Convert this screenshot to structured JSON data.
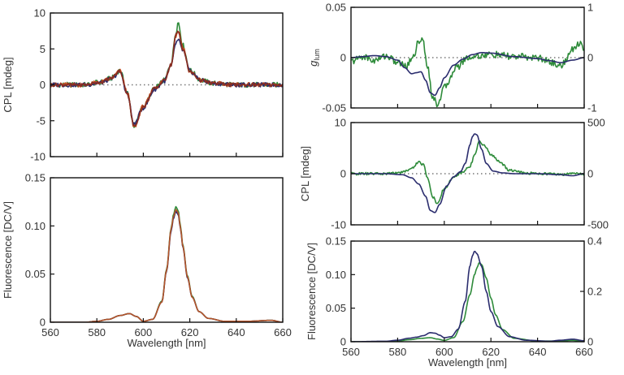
{
  "chart_data": [
    {
      "id": "left_cpl",
      "type": "line",
      "xlabel": "",
      "ylabel": "CPL [mdeg]",
      "xlim": [
        560,
        660
      ],
      "ylim": [
        -10,
        10
      ],
      "xticks": [
        560,
        580,
        600,
        620,
        640,
        660
      ],
      "xticklabels": [],
      "yticks": [
        -10,
        -5,
        0,
        5,
        10
      ],
      "yticklabels": [
        "-10",
        "-5",
        "0",
        "5",
        "10"
      ],
      "zero_line": true,
      "series": [
        {
          "name": "trace-1",
          "color": "#2e8b3a",
          "noise": 0.35,
          "x": [
            560,
            575,
            582,
            586,
            590,
            593,
            596,
            600,
            605,
            609,
            612,
            614,
            615,
            617,
            620,
            625,
            630,
            640,
            660
          ],
          "y": [
            0,
            0,
            0.4,
            0.9,
            2.0,
            -1.0,
            -5.7,
            -3.0,
            -0.5,
            0.6,
            3.0,
            7.3,
            8.7,
            5.5,
            2.0,
            0.6,
            0.2,
            0,
            0
          ]
        },
        {
          "name": "trace-2",
          "color": "#c04a1c",
          "noise": 0.3,
          "x": [
            560,
            575,
            582,
            586,
            590,
            593,
            596,
            600,
            605,
            609,
            612,
            614,
            615,
            617,
            620,
            625,
            630,
            640,
            660
          ],
          "y": [
            0,
            0,
            0.4,
            0.9,
            1.9,
            -1.0,
            -5.9,
            -3.0,
            -0.5,
            0.6,
            3.0,
            6.8,
            7.6,
            5.3,
            1.8,
            0.6,
            0.2,
            0,
            0
          ]
        },
        {
          "name": "trace-3",
          "color": "#2b2d6e",
          "noise": 0.3,
          "x": [
            560,
            575,
            582,
            586,
            590,
            593,
            596,
            600,
            605,
            609,
            612,
            614,
            615,
            617,
            620,
            625,
            630,
            640,
            660
          ],
          "y": [
            0,
            0,
            0.3,
            0.8,
            1.8,
            -1.2,
            -5.5,
            -3.2,
            -0.6,
            0.5,
            2.6,
            5.8,
            6.2,
            4.8,
            1.9,
            0.6,
            0.2,
            0,
            0
          ]
        },
        {
          "name": "trace-4",
          "color": "#8a2e22",
          "noise": 0.25,
          "x": [
            560,
            575,
            582,
            586,
            590,
            593,
            596,
            600,
            605,
            609,
            612,
            614,
            615,
            617,
            620,
            625,
            630,
            640,
            660
          ],
          "y": [
            0,
            0,
            0.4,
            0.9,
            1.9,
            -1.1,
            -5.8,
            -3.1,
            -0.5,
            0.6,
            2.8,
            6.9,
            7.4,
            5.0,
            1.8,
            0.6,
            0.2,
            0,
            0
          ]
        }
      ]
    },
    {
      "id": "left_fluo",
      "type": "line",
      "xlabel": "Wavelength [nm]",
      "ylabel": "Fluorescence [DC/V]",
      "xlim": [
        560,
        660
      ],
      "ylim": [
        0,
        0.15
      ],
      "xticks": [
        560,
        580,
        600,
        620,
        640,
        660
      ],
      "xticklabels": [
        "560",
        "580",
        "600",
        "620",
        "640",
        "660"
      ],
      "yticks": [
        0,
        0.05,
        0.1,
        0.15
      ],
      "yticklabels": [
        "0",
        "0.05",
        "0.10",
        "0.15"
      ],
      "zero_line": false,
      "series": [
        {
          "name": "trace-green",
          "color": "#2e8b3a",
          "noise": 0,
          "x": [
            560,
            575,
            580,
            585,
            590,
            594,
            597,
            600,
            604,
            608,
            610,
            612,
            613,
            614,
            615,
            616,
            617,
            619,
            621,
            624,
            628,
            635,
            645,
            655,
            660
          ],
          "y": [
            0,
            0,
            0.001,
            0.003,
            0.007,
            0.009,
            0.006,
            0.001,
            0.003,
            0.022,
            0.055,
            0.098,
            0.112,
            0.12,
            0.116,
            0.1,
            0.08,
            0.048,
            0.027,
            0.011,
            0.004,
            0.001,
            0.001,
            0.002,
            0
          ]
        },
        {
          "name": "trace-blue",
          "color": "#2b2d6e",
          "noise": 0,
          "x": [
            560,
            575,
            580,
            585,
            590,
            594,
            597,
            600,
            604,
            608,
            610,
            612,
            613,
            614,
            615,
            616,
            617,
            619,
            621,
            624,
            628,
            635,
            645,
            655,
            660
          ],
          "y": [
            0,
            0,
            0.001,
            0.003,
            0.007,
            0.009,
            0.006,
            0.001,
            0.003,
            0.021,
            0.053,
            0.095,
            0.108,
            0.115,
            0.112,
            0.097,
            0.078,
            0.046,
            0.026,
            0.011,
            0.004,
            0.001,
            0.001,
            0.002,
            0
          ]
        },
        {
          "name": "trace-red",
          "color": "#b5542a",
          "noise": 0,
          "x": [
            560,
            575,
            580,
            585,
            590,
            594,
            597,
            600,
            604,
            608,
            610,
            612,
            613,
            614,
            615,
            616,
            617,
            619,
            621,
            624,
            628,
            635,
            645,
            655,
            660
          ],
          "y": [
            0,
            0,
            0.001,
            0.003,
            0.007,
            0.009,
            0.006,
            0.001,
            0.003,
            0.021,
            0.054,
            0.097,
            0.11,
            0.117,
            0.114,
            0.098,
            0.079,
            0.047,
            0.026,
            0.011,
            0.004,
            0.001,
            0.001,
            0.002,
            0
          ]
        }
      ]
    },
    {
      "id": "right_glum",
      "type": "line",
      "xlabel": "",
      "ylabel": "g_lum",
      "ylabel_main": "g",
      "ylabel_sub": "lum",
      "xlim": [
        560,
        660
      ],
      "ylim": [
        -0.05,
        0.05
      ],
      "xticks": [
        560,
        580,
        600,
        620,
        640,
        660
      ],
      "xticklabels": [],
      "yticks": [
        -0.05,
        0,
        0.05
      ],
      "yticklabels": [
        "-0.05",
        "0",
        "0.05"
      ],
      "y2lim": [
        -1,
        1
      ],
      "y2ticks": [
        -1,
        0,
        1
      ],
      "y2ticklabels": [
        "-1",
        "0",
        "1"
      ],
      "zero_line": true,
      "series": [
        {
          "name": "g-left-axis",
          "color": "#2e8b3a",
          "axis": "left",
          "noise": 0.0035,
          "x": [
            560,
            565,
            570,
            575,
            580,
            584,
            587,
            589,
            590,
            591,
            593,
            595,
            597,
            600,
            605,
            610,
            615,
            620,
            630,
            640,
            645,
            650,
            652,
            655,
            658,
            660
          ],
          "y": [
            -0.004,
            0.001,
            -0.003,
            0.002,
            -0.005,
            -0.008,
            0.003,
            0.016,
            0.019,
            0.014,
            -0.01,
            -0.04,
            -0.046,
            -0.03,
            -0.01,
            0.0,
            0.002,
            0.003,
            0.001,
            0.0,
            -0.004,
            -0.008,
            -0.003,
            0.008,
            0.015,
            0.01
          ]
        },
        {
          "name": "g-right-axis",
          "color": "#2b2d6e",
          "axis": "right",
          "noise": 0,
          "x": [
            560,
            565,
            570,
            575,
            580,
            583,
            586,
            588,
            590,
            592,
            594,
            596,
            598,
            600,
            604,
            608,
            612,
            616,
            620,
            630,
            640,
            645,
            650,
            655,
            660
          ],
          "y": [
            0.0,
            0.02,
            0.04,
            0.02,
            -0.05,
            -0.2,
            -0.32,
            -0.3,
            -0.28,
            -0.45,
            -0.7,
            -0.75,
            -0.6,
            -0.4,
            -0.15,
            -0.03,
            0.06,
            0.1,
            0.09,
            0.02,
            -0.02,
            -0.06,
            -0.1,
            -0.05,
            0.0
          ]
        }
      ]
    },
    {
      "id": "right_cpl",
      "type": "line",
      "xlabel": "",
      "ylabel": "CPL [mdeg]",
      "xlim": [
        560,
        660
      ],
      "ylim": [
        -10,
        10
      ],
      "xticks": [
        560,
        580,
        600,
        620,
        640,
        660
      ],
      "xticklabels": [],
      "yticks": [
        -10,
        0,
        10
      ],
      "yticklabels": [
        "-10",
        "0",
        "10"
      ],
      "y2lim": [
        -500,
        500
      ],
      "y2ticks": [
        -500,
        0,
        500
      ],
      "y2ticklabels": [
        "-500",
        "0",
        "500"
      ],
      "zero_line": true,
      "series": [
        {
          "name": "cpl-left-axis",
          "color": "#2e8b3a",
          "axis": "left",
          "noise": 0.25,
          "x": [
            560,
            575,
            582,
            586,
            589,
            591,
            593,
            595,
            597,
            600,
            604,
            608,
            611,
            613,
            615,
            617,
            620,
            624,
            628,
            635,
            645,
            650,
            655,
            660
          ],
          "y": [
            0,
            0,
            0.3,
            1.0,
            2.3,
            1.8,
            -1.0,
            -4.5,
            -5.8,
            -3.0,
            -0.7,
            0.3,
            1.5,
            3.5,
            6.5,
            5.5,
            3.8,
            2.2,
            0.7,
            0.1,
            0,
            -0.2,
            0.1,
            0
          ]
        },
        {
          "name": "cpl-right-axis",
          "color": "#2b2d6e",
          "axis": "right",
          "noise": 0,
          "x": [
            560,
            575,
            582,
            586,
            589,
            592,
            594,
            596,
            598,
            601,
            604,
            607,
            609,
            611,
            612,
            613,
            614,
            616,
            618,
            621,
            625,
            630,
            640,
            650,
            655,
            660
          ],
          "y": [
            0,
            0,
            -10,
            -40,
            -100,
            -220,
            -360,
            -380,
            -300,
            -120,
            -30,
            20,
            100,
            280,
            360,
            390,
            380,
            240,
            100,
            25,
            8,
            0,
            0,
            -10,
            -20,
            0
          ]
        }
      ]
    },
    {
      "id": "right_fluo",
      "type": "line",
      "xlabel": "Wavelength [nm]",
      "ylabel": "Fluorescence [DC/V]",
      "xlim": [
        560,
        660
      ],
      "ylim": [
        0,
        0.15
      ],
      "xticks": [
        560,
        580,
        600,
        620,
        640,
        660
      ],
      "xticklabels": [
        "560",
        "580",
        "600",
        "620",
        "640",
        "660"
      ],
      "yticks": [
        0,
        0.05,
        0.1,
        0.15
      ],
      "yticklabels": [
        "0",
        "0.05",
        "0.10",
        "0.15"
      ],
      "y2lim": [
        0,
        0.4
      ],
      "y2ticks": [
        0,
        0.2,
        0.4
      ],
      "y2ticklabels": [
        "0",
        "0.2",
        "0.4"
      ],
      "zero_line": false,
      "series": [
        {
          "name": "fluo-left-axis",
          "color": "#2e8b3a",
          "axis": "left",
          "noise": 0,
          "x": [
            560,
            575,
            580,
            585,
            590,
            594,
            597,
            600,
            604,
            608,
            611,
            613,
            614,
            615,
            616,
            618,
            620,
            622,
            625,
            630,
            640,
            650,
            655,
            660
          ],
          "y": [
            0,
            0,
            0.001,
            0.003,
            0.005,
            0.006,
            0.004,
            0.002,
            0.006,
            0.03,
            0.07,
            0.1,
            0.11,
            0.118,
            0.115,
            0.095,
            0.065,
            0.04,
            0.018,
            0.005,
            0.001,
            0.001,
            0.002,
            0
          ]
        },
        {
          "name": "fluo-right-axis",
          "color": "#2b2d6e",
          "axis": "right",
          "noise": 0,
          "x": [
            560,
            575,
            580,
            585,
            588,
            591,
            594,
            596,
            598,
            600,
            603,
            606,
            609,
            611,
            612,
            613,
            614,
            616,
            618,
            620,
            623,
            628,
            635,
            645,
            650,
            655,
            660
          ],
          "y": [
            0,
            0.002,
            0.006,
            0.014,
            0.018,
            0.024,
            0.036,
            0.034,
            0.026,
            0.016,
            0.02,
            0.05,
            0.16,
            0.3,
            0.34,
            0.36,
            0.35,
            0.3,
            0.2,
            0.12,
            0.06,
            0.02,
            0.006,
            0.002,
            0.006,
            0.01,
            0.004
          ]
        }
      ]
    }
  ]
}
